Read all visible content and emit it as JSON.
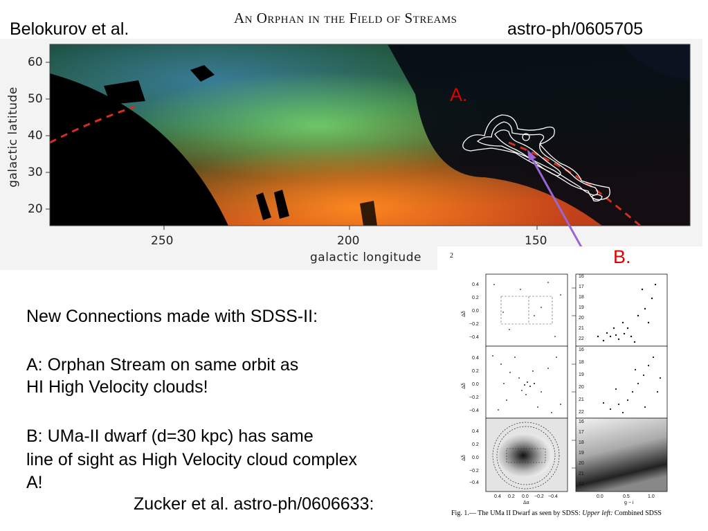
{
  "header": {
    "left": "Belokurov et al.",
    "title": "An Orphan in the Field of Streams",
    "right": "astro-ph/0605705"
  },
  "sky_map": {
    "y_axis_label": "galactic latitude",
    "x_axis_label": "galactic longitude",
    "y_ticks": [
      "60",
      "50",
      "40",
      "30",
      "20"
    ],
    "x_ticks": [
      "250",
      "200",
      "150"
    ],
    "label_a": "A.",
    "label_b": "B.",
    "colors": {
      "stream_line": "#d0301e",
      "arrow": "#9a66d4",
      "label": "#e00000"
    }
  },
  "text": {
    "line1": "New Connections made with SDSS-II:",
    "a_line1": "A:  Orphan Stream on same orbit as",
    "a_line2": "HI High Velocity clouds!",
    "b_line1": "B: UMa-II dwarf (d=30 kpc) has same",
    "b_line2": "line of sight as High Velocity cloud complex",
    "b_line3": "A!",
    "citation": "Zucker et al. astro-ph/0606633:"
  },
  "figure": {
    "page_number": "2",
    "caption_prefix": "Fig. 1.— The UMa II Dwarf as seen by SDSS:",
    "caption_italic": "Upper left:",
    "caption_suffix": "Combined SDSS",
    "left_y_ticks": [
      "0.4",
      "0.2",
      "0.0",
      "−0.2",
      "−0.4"
    ],
    "left_y_label": "Δδ",
    "left_x_ticks": [
      "0.4",
      "0.2",
      "0.0",
      "−0.2",
      "−0.4"
    ],
    "left_x_label": "Δα",
    "right_y_ticks_top": [
      "16",
      "17",
      "18",
      "19",
      "20",
      "21",
      "22"
    ],
    "right_y_ticks_mid": [
      "16",
      "18",
      "19",
      "20",
      "21",
      "22"
    ],
    "right_y_ticks_bot": [
      "16",
      "17",
      "18",
      "19",
      "20",
      "21",
      "22"
    ],
    "right_x_ticks": [
      "0.0",
      "0.5",
      "1.0"
    ],
    "right_x_label": "g − i"
  }
}
